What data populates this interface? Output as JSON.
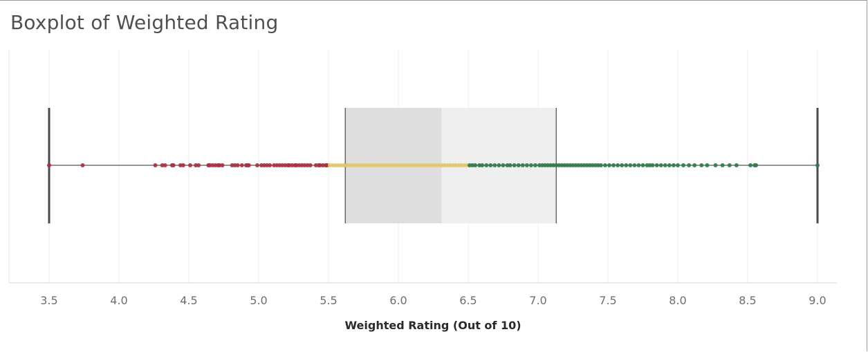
{
  "title": "Boxplot of Weighted Rating",
  "chart_data": {
    "type": "boxplot",
    "title": "Boxplot of Weighted Rating",
    "xlabel": "Weighted Rating (Out of 10)",
    "ylabel": "",
    "xlim": [
      3.5,
      9.0
    ],
    "ticks": [
      "3.5",
      "4.0",
      "4.5",
      "5.0",
      "5.5",
      "6.0",
      "6.5",
      "7.0",
      "7.5",
      "8.0",
      "8.5",
      "9.0"
    ],
    "grid": true,
    "box": {
      "whisker_low": 3.5,
      "q1": 5.62,
      "median": 6.31,
      "q3": 7.13,
      "whisker_high": 9.0
    },
    "color_bands": [
      {
        "range": [
          0,
          5.5
        ],
        "color": "#a8303f"
      },
      {
        "range": [
          5.5,
          6.5
        ],
        "color": "#e6c86e"
      },
      {
        "range": [
          6.5,
          10
        ],
        "color": "#2f7a4a"
      }
    ],
    "box_colors": {
      "lower": "#dedede",
      "upper": "#efefef",
      "line": "#555555"
    },
    "points": [
      3.5,
      3.74,
      4.26,
      4.31,
      4.33,
      4.38,
      4.39,
      4.44,
      4.46,
      4.51,
      4.55,
      4.57,
      4.64,
      4.65,
      4.67,
      4.69,
      4.71,
      4.72,
      4.74,
      4.81,
      4.83,
      4.85,
      4.88,
      4.91,
      4.92,
      4.93,
      4.99,
      5.02,
      5.04,
      5.06,
      5.08,
      5.11,
      5.13,
      5.15,
      5.17,
      5.19,
      5.21,
      5.22,
      5.24,
      5.26,
      5.27,
      5.29,
      5.31,
      5.33,
      5.35,
      5.37,
      5.41,
      5.43,
      5.44,
      5.46,
      5.48,
      5.49,
      5.51,
      5.53,
      5.55,
      5.57,
      5.59,
      5.61,
      5.63,
      5.65,
      5.67,
      5.69,
      5.71,
      5.73,
      5.75,
      5.77,
      5.79,
      5.81,
      5.83,
      5.85,
      5.87,
      5.89,
      5.91,
      5.93,
      5.95,
      5.97,
      5.99,
      6.01,
      6.03,
      6.05,
      6.07,
      6.09,
      6.11,
      6.13,
      6.15,
      6.17,
      6.19,
      6.21,
      6.23,
      6.25,
      6.27,
      6.29,
      6.31,
      6.33,
      6.35,
      6.37,
      6.39,
      6.41,
      6.43,
      6.45,
      6.47,
      6.49,
      6.51,
      6.53,
      6.55,
      6.58,
      6.6,
      6.63,
      6.66,
      6.69,
      6.72,
      6.75,
      6.78,
      6.8,
      6.83,
      6.86,
      6.89,
      6.92,
      6.95,
      6.98,
      7.01,
      7.03,
      7.05,
      7.07,
      7.09,
      7.11,
      7.13,
      7.15,
      7.17,
      7.19,
      7.21,
      7.23,
      7.25,
      7.27,
      7.29,
      7.31,
      7.33,
      7.35,
      7.37,
      7.39,
      7.41,
      7.43,
      7.45,
      7.48,
      7.51,
      7.54,
      7.57,
      7.6,
      7.63,
      7.66,
      7.69,
      7.72,
      7.75,
      7.78,
      7.8,
      7.82,
      7.85,
      7.88,
      7.91,
      7.94,
      7.97,
      8.0,
      8.04,
      8.08,
      8.12,
      8.17,
      8.21,
      8.27,
      8.32,
      8.37,
      8.42,
      8.52,
      8.55,
      8.56,
      9.0
    ]
  }
}
